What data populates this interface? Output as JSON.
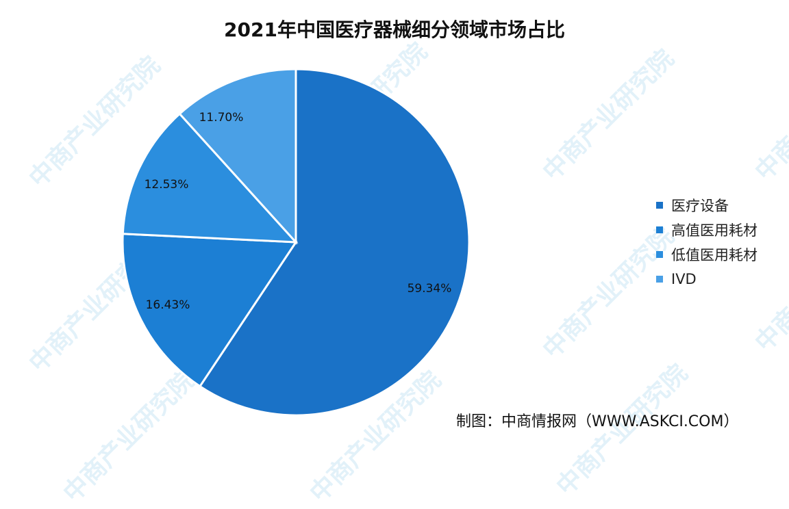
{
  "title": "2021年中国医疗器械细分领域市场占比",
  "source": "制图：中商情报网（WWW.ASKCI.COM）",
  "watermark_text": "中商产业研究院",
  "colors": {
    "slice_1": "#1a72c7",
    "slice_2": "#1c7fd4",
    "slice_3": "#2b8ede",
    "slice_4": "#4aa0e6",
    "separator": "#ffffff"
  },
  "chart_data": {
    "type": "pie",
    "title": "2021年中国医疗器械细分领域市场占比",
    "categories": [
      "医疗设备",
      "高值医用耗材",
      "低值医用耗材",
      "IVD"
    ],
    "values": [
      59.34,
      16.43,
      12.53,
      11.7
    ],
    "labels": [
      "59.34%",
      "16.43%",
      "12.53%",
      "11.70%"
    ],
    "legend_position": "right"
  }
}
